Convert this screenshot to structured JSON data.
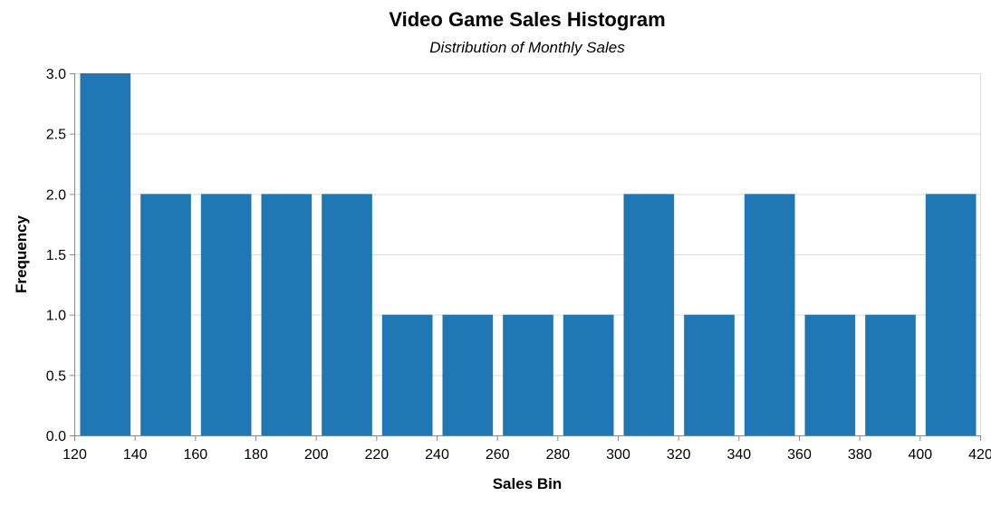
{
  "chart_data": {
    "type": "bar",
    "title": "Video Game Sales Histogram",
    "subtitle": "Distribution of Monthly Sales",
    "xlabel": "Sales Bin",
    "ylabel": "Frequency",
    "bin_width": 20,
    "bins": [
      {
        "start": 120,
        "end": 140,
        "count": 3
      },
      {
        "start": 140,
        "end": 160,
        "count": 2
      },
      {
        "start": 160,
        "end": 180,
        "count": 2
      },
      {
        "start": 180,
        "end": 200,
        "count": 2
      },
      {
        "start": 200,
        "end": 220,
        "count": 2
      },
      {
        "start": 220,
        "end": 240,
        "count": 1
      },
      {
        "start": 240,
        "end": 260,
        "count": 1
      },
      {
        "start": 260,
        "end": 280,
        "count": 1
      },
      {
        "start": 280,
        "end": 300,
        "count": 1
      },
      {
        "start": 300,
        "end": 320,
        "count": 2
      },
      {
        "start": 320,
        "end": 340,
        "count": 1
      },
      {
        "start": 340,
        "end": 360,
        "count": 2
      },
      {
        "start": 360,
        "end": 380,
        "count": 1
      },
      {
        "start": 380,
        "end": 400,
        "count": 1
      },
      {
        "start": 400,
        "end": 420,
        "count": 2
      }
    ],
    "xlim": [
      120,
      420
    ],
    "ylim": [
      0,
      3
    ],
    "x_ticks": [
      "120",
      "140",
      "160",
      "180",
      "200",
      "220",
      "240",
      "260",
      "280",
      "300",
      "320",
      "340",
      "360",
      "380",
      "400",
      "420"
    ],
    "y_ticks": [
      "0.0",
      "0.5",
      "1.0",
      "1.5",
      "2.0",
      "2.5",
      "3.0"
    ],
    "grid": true,
    "bar_color": "#1f77b4"
  }
}
